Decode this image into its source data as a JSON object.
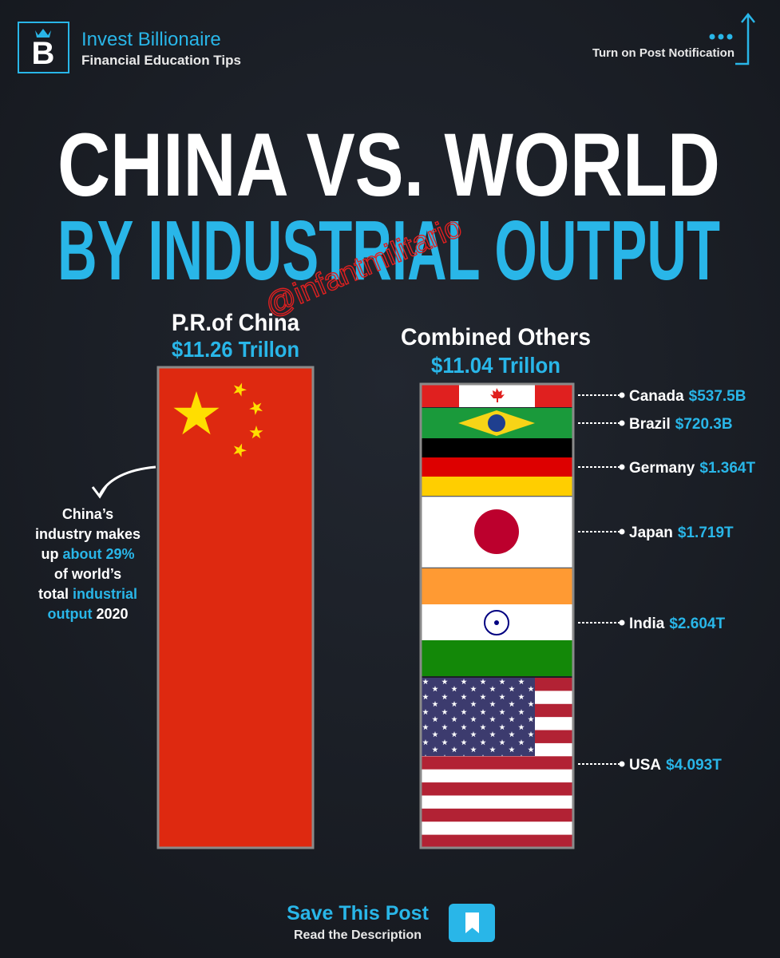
{
  "header": {
    "brand": "Invest Billionaire",
    "tagline": "Financial Education Tips",
    "notification": "Turn on Post Notification"
  },
  "title": {
    "line1": "CHINA VS. WORLD",
    "line2": "BY INDUSTRIAL OUTPUT"
  },
  "watermark": "@infantmilitario",
  "china": {
    "label": "P.R.of China",
    "total": "$11.26 Trillon"
  },
  "note": {
    "lines": [
      [
        {
          "text": "China’s",
          "color": "#ffffff"
        }
      ],
      [
        {
          "text": "industry makes",
          "color": "#ffffff"
        }
      ],
      [
        {
          "text": "up",
          "color": "#ffffff"
        },
        {
          "text": "about 29%",
          "color": "#29b6e8"
        }
      ],
      [
        {
          "text": "of world’s",
          "color": "#ffffff"
        }
      ],
      [
        {
          "text": "total",
          "color": "#ffffff"
        },
        {
          "text": "industrial",
          "color": "#29b6e8"
        }
      ],
      [
        {
          "text": "output",
          "color": "#29b6e8"
        },
        {
          "text": "2020",
          "color": "#ffffff"
        }
      ]
    ]
  },
  "others": {
    "label": "Combined Others",
    "total": "$11.04 Trillon",
    "countries": [
      {
        "name": "Canada",
        "value": "$537.5B"
      },
      {
        "name": "Brazil",
        "value": "$720.3B"
      },
      {
        "name": "Germany",
        "value": "$1.364T"
      },
      {
        "name": "Japan",
        "value": "$1.719T"
      },
      {
        "name": "India",
        "value": "$2.604T"
      },
      {
        "name": "USA",
        "value": "$4.093T"
      }
    ]
  },
  "footer": {
    "cta": "Save This Post",
    "sub": "Read the Description"
  }
}
